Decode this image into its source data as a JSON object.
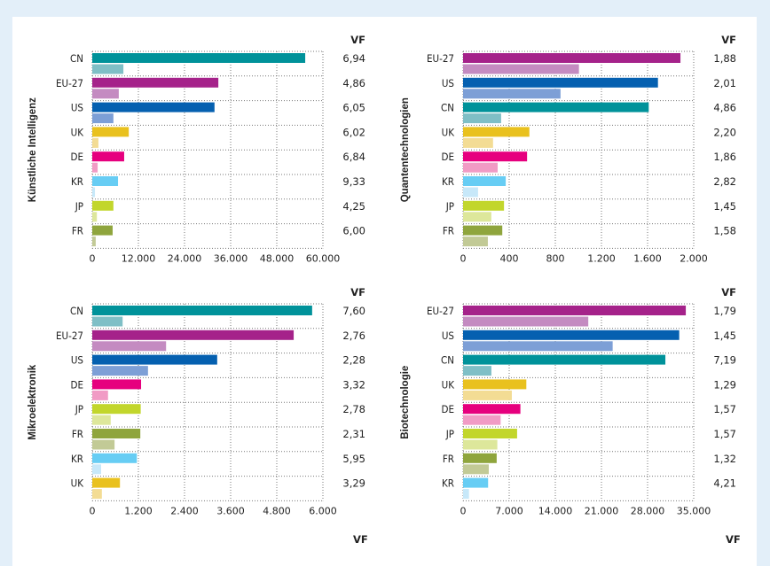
{
  "page": {
    "background": "#e3eff9",
    "panel_background": "#ffffff",
    "cut_off_heading": "",
    "footer_vf_labels": [
      "VF",
      "VF"
    ]
  },
  "colors": {
    "CN": {
      "dark": "#00929a",
      "light": "#7fbfc6"
    },
    "EU-27": {
      "dark": "#a5228a",
      "light": "#c48bc1"
    },
    "US": {
      "dark": "#0560b0",
      "light": "#7d9fd6"
    },
    "UK": {
      "dark": "#e9c11e",
      "light": "#f3dc94"
    },
    "DE": {
      "dark": "#e6007e",
      "light": "#f19bc5"
    },
    "KR": {
      "dark": "#67cdf4",
      "light": "#c7e8f9"
    },
    "JP": {
      "dark": "#c2d62c",
      "light": "#dde79b"
    },
    "FR": {
      "dark": "#8fa53d",
      "light": "#c2ca96"
    }
  },
  "chart_data": [
    {
      "type": "bar",
      "orientation": "horizontal",
      "title": "Künstliche Intelligenz",
      "value_column_header": "VF",
      "xlim": [
        0,
        60000
      ],
      "xticks": [
        0,
        12000,
        24000,
        36000,
        48000,
        60000
      ],
      "xtick_labels": [
        "0",
        "12.000",
        "24.000",
        "36.000",
        "48.000",
        "60.000"
      ],
      "grid": true,
      "categories": [
        "CN",
        "EU-27",
        "US",
        "UK",
        "DE",
        "KR",
        "JP",
        "FR"
      ],
      "series": [
        {
          "name": "dark",
          "values": [
            55400,
            32800,
            31800,
            9500,
            8300,
            6700,
            5500,
            5300
          ]
        },
        {
          "name": "light",
          "values": [
            8100,
            6900,
            5500,
            1600,
            1400,
            700,
            1200,
            900
          ]
        }
      ],
      "vf": [
        "6,94",
        "4,86",
        "6,05",
        "6,02",
        "6,84",
        "9,33",
        "4,25",
        "6,00"
      ]
    },
    {
      "type": "bar",
      "orientation": "horizontal",
      "title": "Quantentechnologien",
      "value_column_header": "VF",
      "xlim": [
        0,
        2000
      ],
      "xticks": [
        0,
        400,
        800,
        1200,
        1600,
        2000
      ],
      "xtick_labels": [
        "0",
        "400",
        "800",
        "1.200",
        "1.600",
        "2.000"
      ],
      "grid": true,
      "categories": [
        "EU-27",
        "US",
        "CN",
        "UK",
        "DE",
        "KR",
        "JP",
        "FR"
      ],
      "series": [
        {
          "name": "dark",
          "values": [
            1885,
            1690,
            1610,
            575,
            555,
            370,
            355,
            340
          ]
        },
        {
          "name": "light",
          "values": [
            1005,
            845,
            330,
            260,
            300,
            130,
            245,
            215
          ]
        }
      ],
      "vf": [
        "1,88",
        "2,01",
        "4,86",
        "2,20",
        "1,86",
        "2,82",
        "1,45",
        "1,58"
      ]
    },
    {
      "type": "bar",
      "orientation": "horizontal",
      "title": "Mikroelektronik",
      "value_column_header": "VF",
      "xlim": [
        0,
        6000
      ],
      "xticks": [
        0,
        1200,
        2400,
        3600,
        4800,
        6000
      ],
      "xtick_labels": [
        "0",
        "1.200",
        "2.400",
        "3.600",
        "4.800",
        "6.000"
      ],
      "grid": true,
      "categories": [
        "CN",
        "EU-27",
        "US",
        "DE",
        "JP",
        "FR",
        "KR",
        "UK"
      ],
      "series": [
        {
          "name": "dark",
          "values": [
            5720,
            5240,
            3250,
            1270,
            1260,
            1250,
            1160,
            720
          ]
        },
        {
          "name": "light",
          "values": [
            790,
            1920,
            1450,
            410,
            480,
            580,
            230,
            250
          ]
        }
      ],
      "vf": [
        "7,60",
        "2,76",
        "2,28",
        "3,32",
        "2,78",
        "2,31",
        "5,95",
        "3,29"
      ]
    },
    {
      "type": "bar",
      "orientation": "horizontal",
      "title": "Biotechnologie",
      "value_column_header": "VF",
      "xlim": [
        0,
        35000
      ],
      "xticks": [
        0,
        7000,
        14000,
        21000,
        28000,
        35000
      ],
      "xtick_labels": [
        "0",
        "7.000",
        "14.000",
        "21.000",
        "28.000",
        "35.000"
      ],
      "grid": true,
      "categories": [
        "EU-27",
        "US",
        "CN",
        "UK",
        "DE",
        "JP",
        "FR",
        "KR"
      ],
      "series": [
        {
          "name": "dark",
          "values": [
            33800,
            32800,
            30700,
            9600,
            8700,
            8200,
            5100,
            3800
          ]
        },
        {
          "name": "light",
          "values": [
            19000,
            22700,
            4300,
            7400,
            5700,
            5200,
            3900,
            900
          ]
        }
      ],
      "vf": [
        "1,79",
        "1,45",
        "7,19",
        "1,29",
        "1,57",
        "1,57",
        "1,32",
        "4,21"
      ]
    }
  ]
}
